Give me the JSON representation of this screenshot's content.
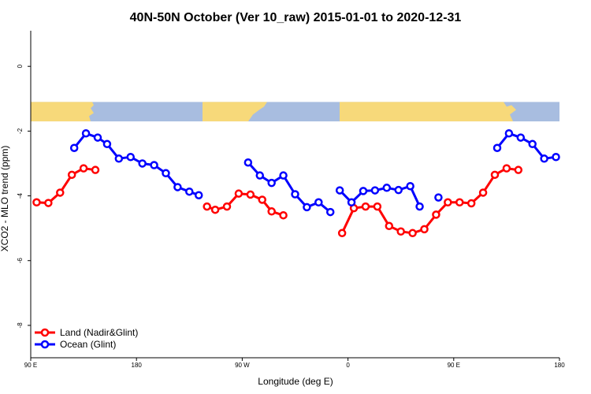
{
  "chart_data": {
    "type": "line",
    "title": "40N-50N October (Ver 10_raw)   2015-01-01 to 2020-12-31",
    "xlabel": "Longitude (deg E)",
    "ylabel": "XCO2 - MLO trend (ppm)",
    "x_ticks": [
      "90 E",
      "180",
      "90 W",
      "0",
      "90 E",
      "180"
    ],
    "y_ticks": [
      "0",
      "-2",
      "-4",
      "-6",
      "-8"
    ],
    "y_tick_values": [
      0,
      -2,
      -4,
      -6,
      -8
    ],
    "xlim": [
      0,
      450
    ],
    "ylim": [
      -9,
      1.1
    ],
    "grid": false,
    "legend_position": "bottom-left",
    "map_band": {
      "y_top": -1.1,
      "y_bottom": -1.7,
      "ocean_color": "#a8bde0",
      "land_color": "#f7d97a"
    },
    "series": [
      {
        "name": "Land (Nadir&Glint)",
        "color": "#ff0000",
        "segments": [
          [
            [
              5,
              -4.2
            ],
            [
              15,
              -4.22
            ],
            [
              25,
              -3.9
            ],
            [
              35,
              -3.35
            ],
            [
              45,
              -3.15
            ],
            [
              55,
              -3.2
            ]
          ],
          [
            [
              150,
              -4.33
            ],
            [
              157,
              -4.43
            ],
            [
              167,
              -4.33
            ],
            [
              177,
              -3.93
            ],
            [
              187,
              -3.96
            ],
            [
              197,
              -4.12
            ],
            [
              205,
              -4.48
            ],
            [
              215,
              -4.6
            ]
          ],
          [
            [
              265,
              -5.15
            ],
            [
              275,
              -4.38
            ],
            [
              285,
              -4.33
            ],
            [
              295,
              -4.33
            ],
            [
              305,
              -4.93
            ],
            [
              315,
              -5.1
            ],
            [
              325,
              -5.15
            ],
            [
              335,
              -5.03
            ],
            [
              345,
              -4.58
            ],
            [
              355,
              -4.2
            ],
            [
              365,
              -4.2
            ],
            [
              375,
              -4.23
            ],
            [
              385,
              -3.9
            ],
            [
              395,
              -3.35
            ],
            [
              405,
              -3.15
            ],
            [
              415,
              -3.2
            ]
          ]
        ]
      },
      {
        "name": "Ocean (Glint)",
        "color": "#0000ff",
        "segments": [
          [
            [
              37,
              -2.52
            ],
            [
              47,
              -2.07
            ],
            [
              57,
              -2.2
            ],
            [
              65,
              -2.4
            ],
            [
              75,
              -2.85
            ],
            [
              85,
              -2.8
            ],
            [
              95,
              -3.0
            ],
            [
              105,
              -3.05
            ],
            [
              115,
              -3.3
            ],
            [
              125,
              -3.73
            ],
            [
              135,
              -3.87
            ],
            [
              143,
              -3.98
            ]
          ],
          [
            [
              185,
              -2.97
            ],
            [
              195,
              -3.37
            ],
            [
              205,
              -3.6
            ],
            [
              215,
              -3.37
            ],
            [
              225,
              -3.95
            ],
            [
              235,
              -4.35
            ],
            [
              245,
              -4.2
            ],
            [
              255,
              -4.5
            ]
          ],
          [
            [
              263,
              -3.83
            ],
            [
              273,
              -4.2
            ],
            [
              283,
              -3.85
            ],
            [
              293,
              -3.83
            ],
            [
              303,
              -3.75
            ],
            [
              313,
              -3.82
            ],
            [
              323,
              -3.7
            ],
            [
              331,
              -4.33
            ]
          ],
          [
            [
              347,
              -4.05
            ]
          ],
          [
            [
              397,
              -2.52
            ],
            [
              407,
              -2.07
            ],
            [
              417,
              -2.2
            ],
            [
              427,
              -2.4
            ],
            [
              437,
              -2.85
            ],
            [
              447,
              -2.8
            ]
          ]
        ]
      }
    ]
  }
}
